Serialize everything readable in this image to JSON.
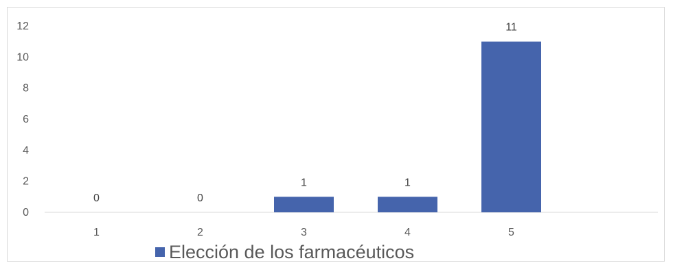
{
  "chart_data": {
    "type": "bar",
    "categories": [
      "1",
      "2",
      "3",
      "4",
      "5"
    ],
    "series": [
      {
        "name": "Elección de los farmacéuticos",
        "values": [
          0,
          0,
          1,
          1,
          11
        ],
        "color": "#4564AC"
      }
    ],
    "data_labels": [
      "0",
      "0",
      "1",
      "1",
      "11"
    ],
    "y_ticks": [
      "0",
      "2",
      "4",
      "6",
      "8",
      "10",
      "12"
    ],
    "ylim": [
      0,
      12
    ],
    "grid": false,
    "legend_position": "bottom",
    "legend": {
      "label": "Elección de los farmacéuticos"
    }
  }
}
